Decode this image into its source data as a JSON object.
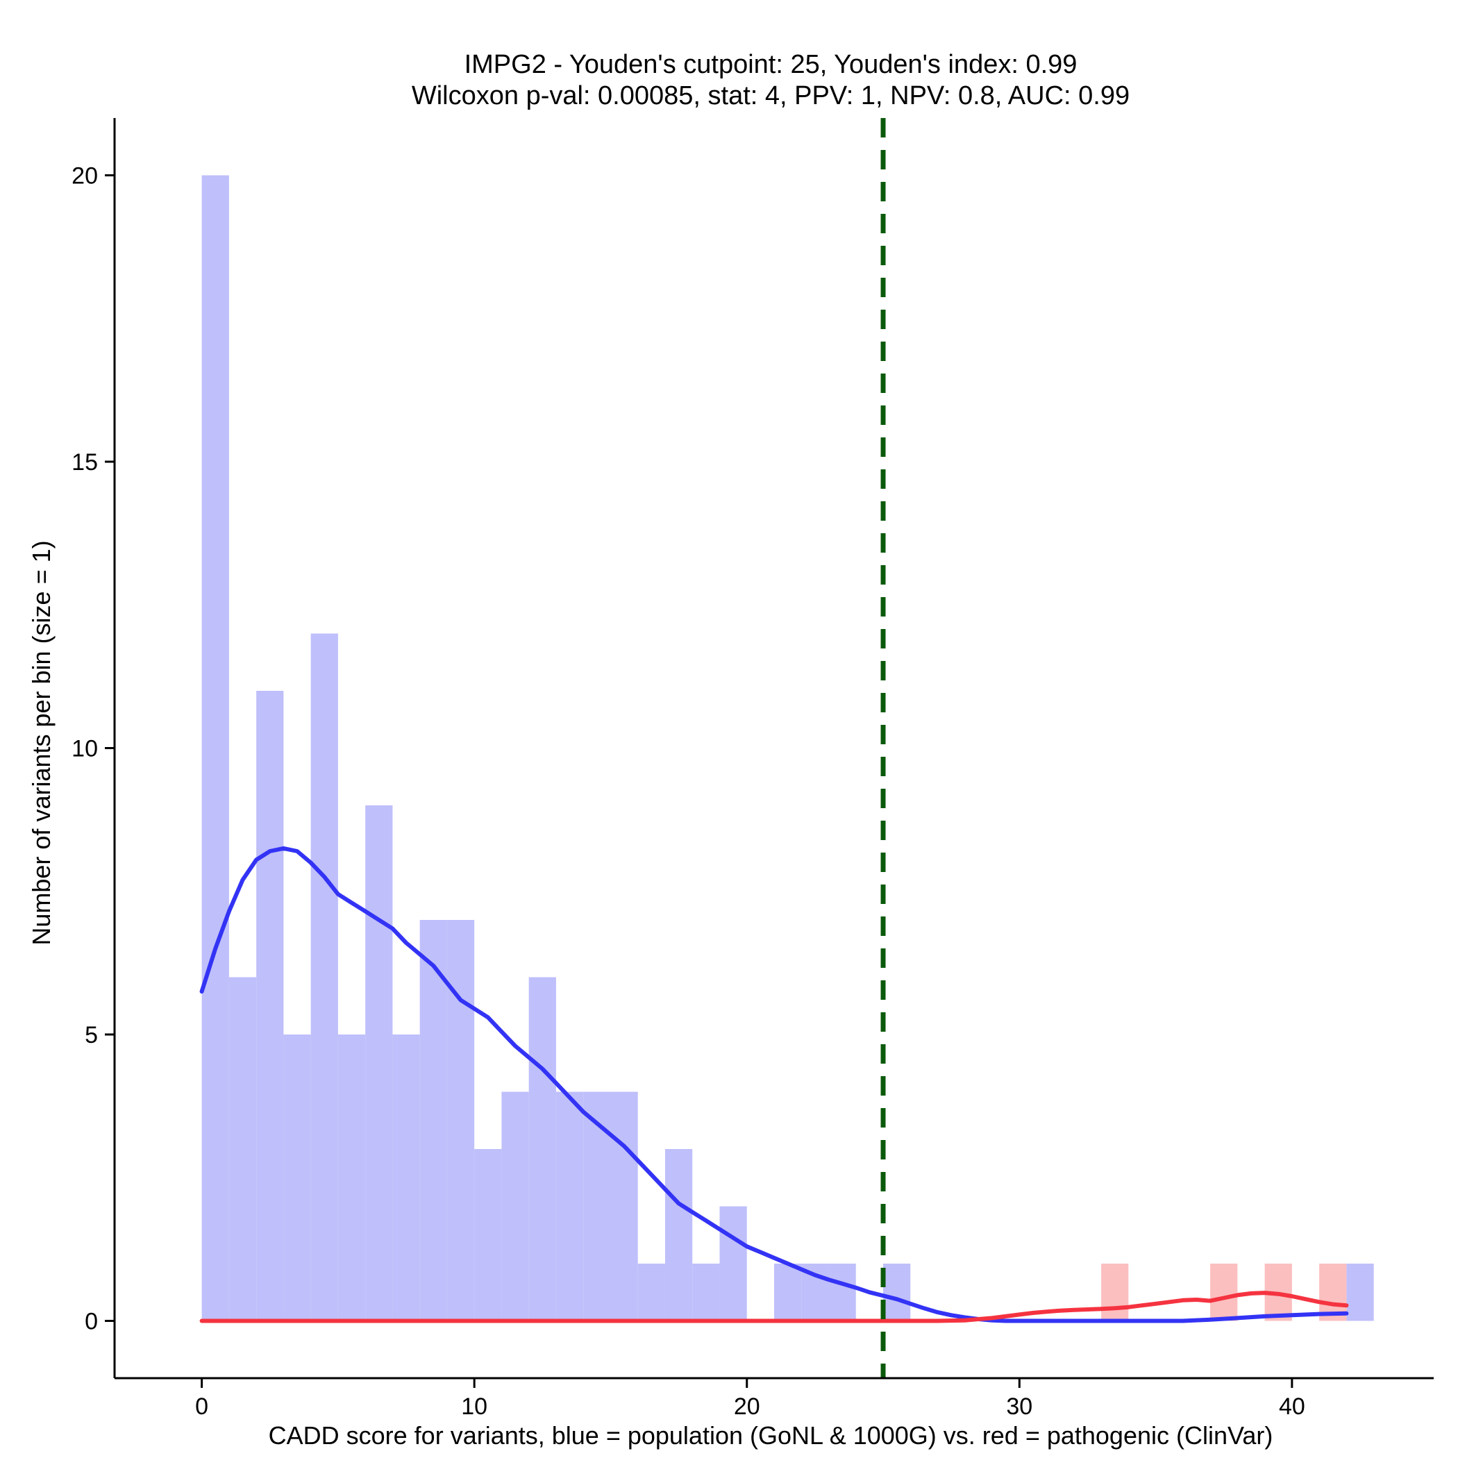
{
  "chart_data": {
    "type": "bar",
    "title_line1": "IMPG2 - Youden's cutpoint: 25, Youden's index: 0.99",
    "title_line2": "Wilcoxon p-val: 0.00085, stat: 4, PPV: 1, NPV: 0.8, AUC: 0.99",
    "xlabel": "CADD score for variants, blue = population (GoNL & 1000G) vs. red = pathogenic (ClinVar)",
    "ylabel": "Number of variants per bin (size = 1)",
    "xlim": [
      -3.2,
      45.2
    ],
    "ylim": [
      -1,
      21
    ],
    "xticks": [
      0,
      10,
      20,
      30,
      40
    ],
    "yticks": [
      0,
      5,
      10,
      15,
      20
    ],
    "bin_size": 1,
    "cutpoint": 25,
    "colors": {
      "population_bar": "#bfbffb",
      "pathogenic_bar": "#fbbfbf",
      "population_density": "#3333f5",
      "pathogenic_density": "#f53340",
      "cutpoint_line": "#0b5a0b"
    },
    "series": [
      {
        "name": "population (GoNL & 1000G)",
        "bins": [
          [
            0,
            20
          ],
          [
            1,
            6
          ],
          [
            2,
            11
          ],
          [
            3,
            5
          ],
          [
            4,
            12
          ],
          [
            5,
            5
          ],
          [
            6,
            9
          ],
          [
            7,
            5
          ],
          [
            8,
            7
          ],
          [
            9,
            7
          ],
          [
            10,
            3
          ],
          [
            11,
            4
          ],
          [
            12,
            6
          ],
          [
            13,
            4
          ],
          [
            14,
            4
          ],
          [
            15,
            4
          ],
          [
            16,
            1
          ],
          [
            17,
            3
          ],
          [
            18,
            1
          ],
          [
            19,
            2
          ],
          [
            21,
            1
          ],
          [
            22,
            1
          ],
          [
            23,
            1
          ],
          [
            25,
            1
          ],
          [
            42,
            1
          ]
        ]
      },
      {
        "name": "pathogenic (ClinVar)",
        "bins": [
          [
            33,
            1
          ],
          [
            37,
            1
          ],
          [
            39,
            1
          ],
          [
            41,
            1
          ]
        ]
      }
    ],
    "density": {
      "population": [
        [
          0,
          5.75
        ],
        [
          0.5,
          6.5
        ],
        [
          1,
          7.15
        ],
        [
          1.5,
          7.7
        ],
        [
          2,
          8.05
        ],
        [
          2.5,
          8.2
        ],
        [
          3,
          8.25
        ],
        [
          3.5,
          8.2
        ],
        [
          4,
          8.0
        ],
        [
          4.5,
          7.75
        ],
        [
          5,
          7.45
        ],
        [
          5.5,
          7.3
        ],
        [
          6,
          7.15
        ],
        [
          6.5,
          7.0
        ],
        [
          7,
          6.85
        ],
        [
          7.5,
          6.6
        ],
        [
          8,
          6.4
        ],
        [
          8.5,
          6.2
        ],
        [
          9,
          5.9
        ],
        [
          9.5,
          5.6
        ],
        [
          10,
          5.45
        ],
        [
          10.5,
          5.3
        ],
        [
          11,
          5.05
        ],
        [
          11.5,
          4.8
        ],
        [
          12,
          4.6
        ],
        [
          12.5,
          4.4
        ],
        [
          13,
          4.15
        ],
        [
          13.5,
          3.9
        ],
        [
          14,
          3.65
        ],
        [
          14.5,
          3.45
        ],
        [
          15,
          3.25
        ],
        [
          15.5,
          3.05
        ],
        [
          16,
          2.8
        ],
        [
          16.5,
          2.55
        ],
        [
          17,
          2.3
        ],
        [
          17.5,
          2.05
        ],
        [
          18,
          1.9
        ],
        [
          18.5,
          1.75
        ],
        [
          19,
          1.6
        ],
        [
          19.5,
          1.45
        ],
        [
          20,
          1.3
        ],
        [
          20.5,
          1.2
        ],
        [
          21,
          1.1
        ],
        [
          21.5,
          1.0
        ],
        [
          22,
          0.9
        ],
        [
          22.5,
          0.8
        ],
        [
          23,
          0.72
        ],
        [
          23.5,
          0.65
        ],
        [
          24,
          0.58
        ],
        [
          24.5,
          0.5
        ],
        [
          25,
          0.44
        ],
        [
          25.5,
          0.38
        ],
        [
          26,
          0.3
        ],
        [
          26.5,
          0.22
        ],
        [
          27,
          0.15
        ],
        [
          27.5,
          0.1
        ],
        [
          28,
          0.06
        ],
        [
          28.5,
          0.03
        ],
        [
          29,
          0.01
        ],
        [
          29.5,
          0.0
        ],
        [
          30,
          0.0
        ],
        [
          31,
          0.0
        ],
        [
          32,
          0.0
        ],
        [
          33,
          0.0
        ],
        [
          34,
          0.0
        ],
        [
          35,
          0.0
        ],
        [
          36,
          0.0
        ],
        [
          37,
          0.02
        ],
        [
          38,
          0.05
        ],
        [
          39,
          0.08
        ],
        [
          40,
          0.1
        ],
        [
          41,
          0.12
        ],
        [
          42,
          0.13
        ]
      ],
      "pathogenic": [
        [
          0,
          0
        ],
        [
          5,
          0
        ],
        [
          10,
          0
        ],
        [
          15,
          0
        ],
        [
          20,
          0
        ],
        [
          25,
          0
        ],
        [
          27,
          0
        ],
        [
          28,
          0.01
        ],
        [
          28.5,
          0.03
        ],
        [
          29,
          0.05
        ],
        [
          29.5,
          0.08
        ],
        [
          30,
          0.11
        ],
        [
          30.5,
          0.14
        ],
        [
          31,
          0.16
        ],
        [
          31.5,
          0.18
        ],
        [
          32,
          0.19
        ],
        [
          32.5,
          0.2
        ],
        [
          33,
          0.21
        ],
        [
          33.5,
          0.22
        ],
        [
          34,
          0.24
        ],
        [
          34.5,
          0.27
        ],
        [
          35,
          0.3
        ],
        [
          35.5,
          0.33
        ],
        [
          36,
          0.36
        ],
        [
          36.5,
          0.37
        ],
        [
          37,
          0.35
        ],
        [
          37.5,
          0.4
        ],
        [
          38,
          0.45
        ],
        [
          38.5,
          0.48
        ],
        [
          39,
          0.49
        ],
        [
          39.5,
          0.47
        ],
        [
          40,
          0.43
        ],
        [
          40.5,
          0.38
        ],
        [
          41,
          0.33
        ],
        [
          41.5,
          0.29
        ],
        [
          42,
          0.27
        ]
      ]
    }
  }
}
